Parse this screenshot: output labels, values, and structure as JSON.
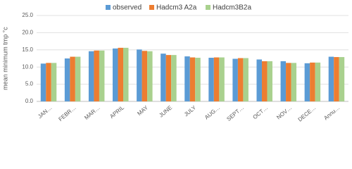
{
  "chart_data": {
    "type": "bar",
    "y_label": "mean minimum tmp °c",
    "categories": [
      "JAN…",
      "FEBR…",
      "MAR…",
      "APRIL",
      "MAY",
      "JUNE",
      "JULY",
      "AUG…",
      "SEPT…",
      "OCT…",
      "NOV…",
      "DECE…",
      "Annu…"
    ],
    "series": [
      {
        "name": "observed",
        "color": "#5b9bd5",
        "values": [
          11.0,
          12.5,
          14.6,
          15.4,
          15.1,
          13.9,
          13.1,
          12.7,
          12.4,
          12.2,
          11.7,
          11.1,
          13.0
        ]
      },
      {
        "name": "Hadcm3 A2a",
        "color": "#ed7d31",
        "values": [
          11.2,
          13.0,
          14.8,
          15.6,
          14.7,
          13.5,
          12.8,
          12.8,
          12.6,
          11.7,
          11.2,
          11.3,
          12.9
        ]
      },
      {
        "name": "Hadcm3B2a",
        "color": "#a9d18e",
        "values": [
          11.2,
          13.0,
          14.8,
          15.6,
          14.6,
          13.5,
          12.7,
          12.8,
          12.6,
          11.7,
          11.2,
          11.3,
          12.9
        ]
      }
    ],
    "ylim": [
      0,
      25
    ],
    "yticks": [
      {
        "value": 0,
        "label": "0.0"
      },
      {
        "value": 5,
        "label": "5.0"
      },
      {
        "value": 10,
        "label": "10.0"
      },
      {
        "value": 15,
        "label": "15.0"
      },
      {
        "value": 20,
        "label": "20.0"
      },
      {
        "value": 25,
        "label": "25.0"
      }
    ],
    "grid": true,
    "legend": "top"
  }
}
